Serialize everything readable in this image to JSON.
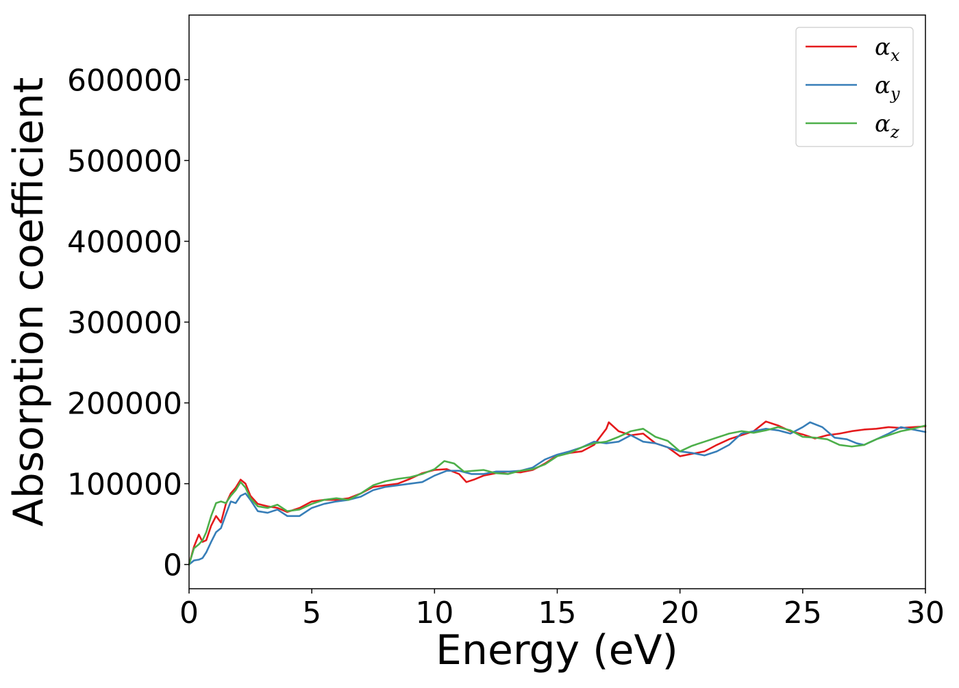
{
  "chart_data": {
    "type": "line",
    "title": "",
    "xlabel": "Energy (eV)",
    "ylabel": "Absorption coefficient",
    "xlim": [
      0,
      30
    ],
    "ylim": [
      -30000,
      680000
    ],
    "xticks": [
      0,
      5,
      10,
      15,
      20,
      25,
      30
    ],
    "yticks": [
      0,
      100000,
      200000,
      300000,
      400000,
      500000,
      600000
    ],
    "grid": false,
    "legend_position": "top-right",
    "series": [
      {
        "name": "αx",
        "legend_base": "α",
        "legend_sub": "x",
        "color": "#e41a1c",
        "x": [
          0,
          0.2,
          0.4,
          0.55,
          0.7,
          0.9,
          1.1,
          1.3,
          1.5,
          1.7,
          1.9,
          2.1,
          2.3,
          2.5,
          2.8,
          3.2,
          3.6,
          4.0,
          4.5,
          5.0,
          5.5,
          6.0,
          6.5,
          7.0,
          7.5,
          8.0,
          8.5,
          9.0,
          9.5,
          10.0,
          10.5,
          11.0,
          11.3,
          11.6,
          12.0,
          12.5,
          13.0,
          13.5,
          14.0,
          14.5,
          15.0,
          15.5,
          16.0,
          16.5,
          17.0,
          17.1,
          17.5,
          18.0,
          18.5,
          19.0,
          19.5,
          20.0,
          20.5,
          21.0,
          21.5,
          22.0,
          22.5,
          23.0,
          23.5,
          24.0,
          24.5,
          25.0,
          25.5,
          26.0,
          26.5,
          27.0,
          27.5,
          28.0,
          28.5,
          29.0,
          29.5,
          30.0
        ],
        "y": [
          0,
          22000,
          37000,
          28000,
          30000,
          48000,
          60000,
          52000,
          75000,
          88000,
          95000,
          105000,
          100000,
          85000,
          75000,
          72000,
          70000,
          65000,
          70000,
          78000,
          80000,
          80000,
          82000,
          88000,
          96000,
          98000,
          100000,
          106000,
          113000,
          117000,
          118000,
          112000,
          102000,
          105000,
          110000,
          113000,
          115000,
          114000,
          117000,
          125000,
          135000,
          138000,
          140000,
          148000,
          168000,
          176000,
          165000,
          160000,
          162000,
          150000,
          145000,
          134000,
          137000,
          140000,
          148000,
          155000,
          160000,
          165000,
          177000,
          172000,
          165000,
          161000,
          156000,
          160000,
          162000,
          165000,
          167000,
          168000,
          170000,
          169000,
          170000,
          171000
        ]
      },
      {
        "name": "αy",
        "legend_base": "α",
        "legend_sub": "y",
        "color": "#377eb8",
        "x": [
          0,
          0.2,
          0.4,
          0.55,
          0.7,
          0.9,
          1.1,
          1.3,
          1.5,
          1.7,
          1.9,
          2.1,
          2.3,
          2.5,
          2.8,
          3.2,
          3.6,
          4.0,
          4.5,
          5.0,
          5.5,
          6.0,
          6.5,
          7.0,
          7.5,
          8.0,
          8.5,
          9.0,
          9.5,
          10.0,
          10.5,
          11.0,
          11.5,
          12.0,
          12.5,
          13.0,
          13.5,
          14.0,
          14.5,
          15.0,
          15.5,
          16.0,
          16.5,
          17.0,
          17.5,
          18.0,
          18.5,
          19.0,
          19.5,
          20.0,
          20.5,
          21.0,
          21.5,
          22.0,
          22.5,
          23.0,
          23.5,
          24.0,
          24.5,
          25.0,
          25.3,
          25.8,
          26.3,
          26.8,
          27.2,
          27.5,
          28.0,
          28.5,
          29.0,
          29.5,
          30.0
        ],
        "y": [
          0,
          5000,
          6000,
          8000,
          15000,
          28000,
          40000,
          45000,
          62000,
          78000,
          76000,
          85000,
          88000,
          80000,
          66000,
          64000,
          68000,
          60000,
          60000,
          70000,
          75000,
          78000,
          80000,
          84000,
          92000,
          96000,
          98000,
          100000,
          102000,
          110000,
          116000,
          116000,
          112000,
          112000,
          115000,
          115000,
          116000,
          120000,
          130000,
          136000,
          140000,
          145000,
          152000,
          150000,
          152000,
          160000,
          152000,
          150000,
          145000,
          140000,
          138000,
          135000,
          140000,
          148000,
          162000,
          165000,
          168000,
          166000,
          162000,
          170000,
          176000,
          170000,
          157000,
          155000,
          150000,
          148000,
          155000,
          162000,
          170000,
          167000,
          164000
        ]
      },
      {
        "name": "αz",
        "legend_base": "α",
        "legend_sub": "z",
        "color": "#4daf4a",
        "x": [
          0,
          0.2,
          0.4,
          0.55,
          0.7,
          0.9,
          1.1,
          1.3,
          1.5,
          1.7,
          1.9,
          2.1,
          2.3,
          2.5,
          2.8,
          3.2,
          3.6,
          4.0,
          4.5,
          5.0,
          5.5,
          6.0,
          6.5,
          7.0,
          7.5,
          8.0,
          8.5,
          9.0,
          9.5,
          10.0,
          10.4,
          10.8,
          11.2,
          11.6,
          12.0,
          12.5,
          13.0,
          13.5,
          14.0,
          14.5,
          15.0,
          15.5,
          16.0,
          16.5,
          17.0,
          17.5,
          18.0,
          18.5,
          19.0,
          19.5,
          20.0,
          20.5,
          21.0,
          21.5,
          22.0,
          22.5,
          23.0,
          23.5,
          24.0,
          24.5,
          25.0,
          25.5,
          26.0,
          26.5,
          27.0,
          27.5,
          28.0,
          28.5,
          29.0,
          29.5,
          30.0
        ],
        "y": [
          0,
          20000,
          25000,
          30000,
          40000,
          60000,
          76000,
          78000,
          76000,
          85000,
          92000,
          102000,
          95000,
          82000,
          72000,
          70000,
          74000,
          66000,
          68000,
          75000,
          80000,
          82000,
          80000,
          88000,
          98000,
          103000,
          106000,
          108000,
          112000,
          118000,
          128000,
          125000,
          115000,
          116000,
          117000,
          113000,
          112000,
          116000,
          118000,
          124000,
          134000,
          138000,
          145000,
          150000,
          152000,
          158000,
          165000,
          168000,
          158000,
          153000,
          140000,
          147000,
          152000,
          157000,
          162000,
          165000,
          163000,
          166000,
          170000,
          166000,
          158000,
          157000,
          155000,
          148000,
          146000,
          148000,
          155000,
          160000,
          165000,
          168000,
          172000
        ]
      }
    ]
  }
}
